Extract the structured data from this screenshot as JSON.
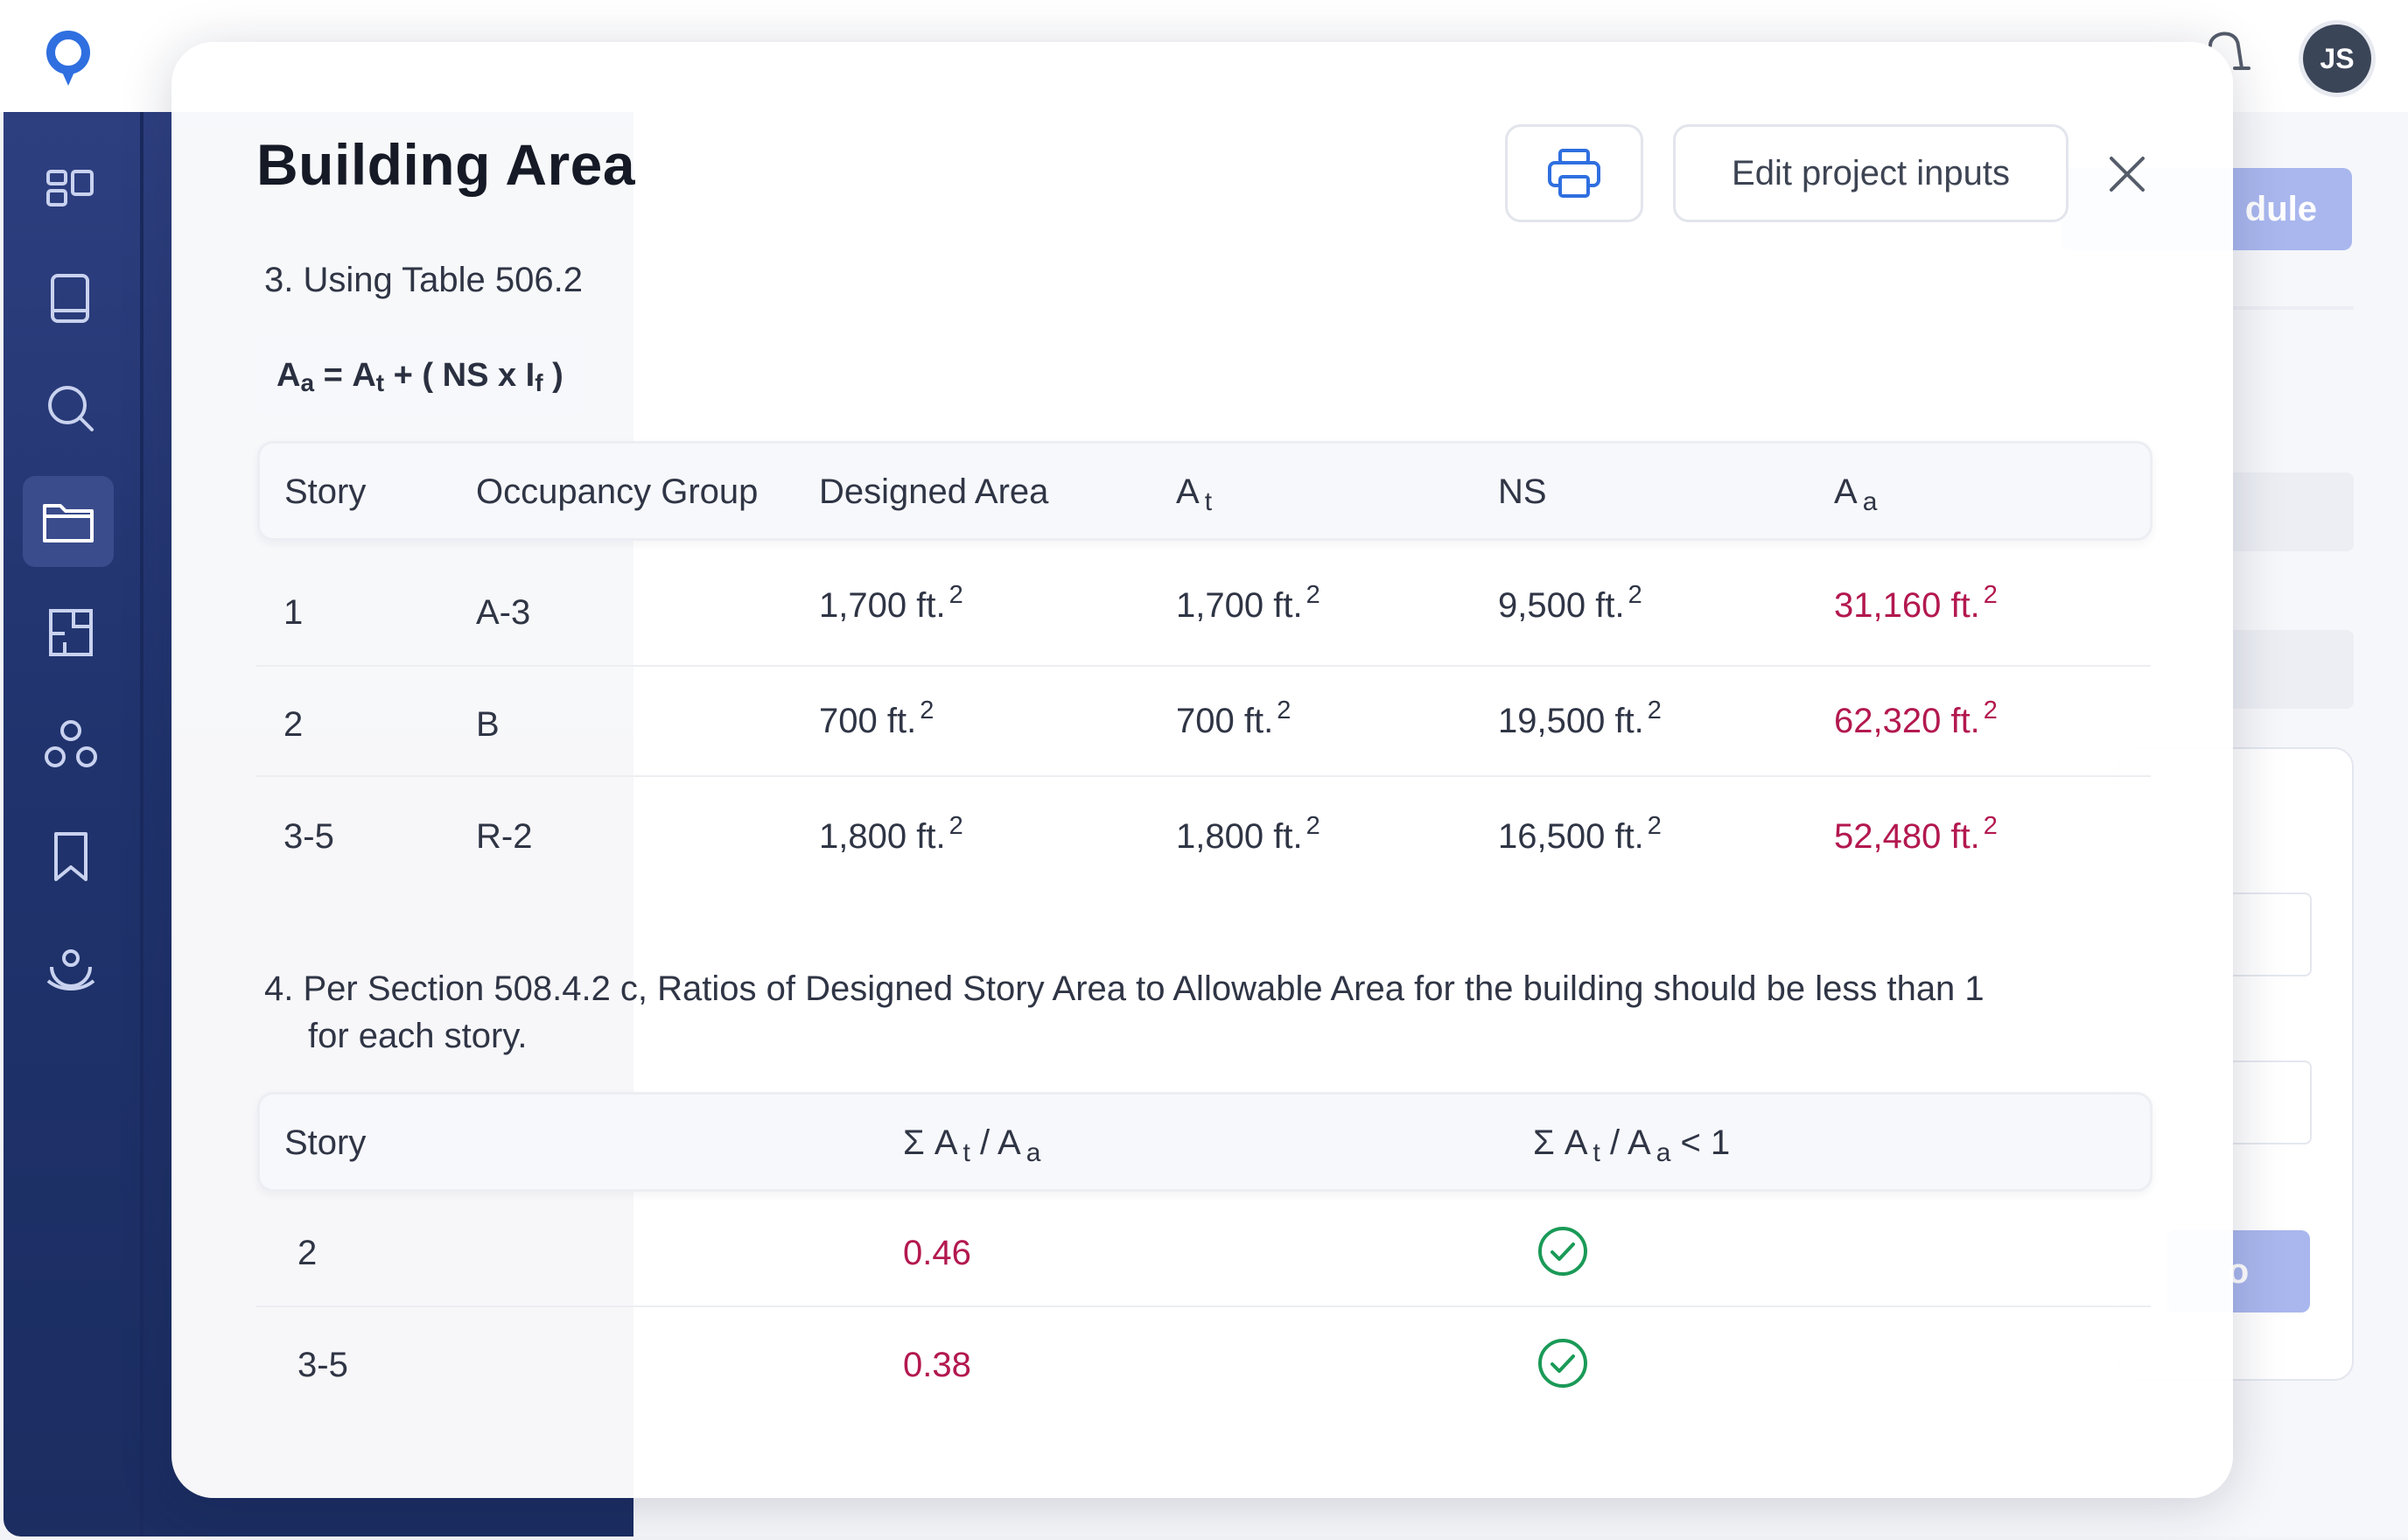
{
  "user": {
    "initials": "JS"
  },
  "background": {
    "primary_button_label": "dule",
    "secondary_button_label": "o"
  },
  "modal": {
    "title": "Building Area",
    "edit_button_label": "Edit project inputs",
    "step3_text": "3. Using Table 506.2",
    "formula": {
      "lhs": "A",
      "lhs_sub": "a",
      "eq": " = ",
      "term1": "A",
      "term1_sub": "t",
      "rest": " + ( NS x I",
      "rest_sub": "f",
      "close": " )"
    },
    "table1": {
      "headers": {
        "story": "Story",
        "occupancy": "Occupancy Group",
        "designed": "Designed Area",
        "at": "A",
        "at_sub": "t",
        "ns": "NS",
        "aa": "A",
        "aa_sub": "a"
      },
      "unit_exp": "2",
      "rows": [
        {
          "story": "1",
          "occupancy": "A-3",
          "designed": "1,700 ft.",
          "at": "1,700 ft.",
          "ns": "9,500 ft.",
          "aa": "31,160 ft."
        },
        {
          "story": "2",
          "occupancy": "B",
          "designed": "700 ft.",
          "at": "700 ft.",
          "ns": "19,500 ft.",
          "aa": "62,320 ft."
        },
        {
          "story": "3-5",
          "occupancy": "R-2",
          "designed": "1,800 ft.",
          "at": "1,800 ft.",
          "ns": "16,500 ft.",
          "aa": "52,480 ft."
        }
      ]
    },
    "step4_text": "4. Per Section 508.4.2 c, Ratios of Designed Story Area to Allowable Area for the building should be less than 1",
    "step4_text_cont": "for each story.",
    "table2": {
      "headers": {
        "story": "Story",
        "ratio_prefix": "Σ A",
        "ratio_sub1": "t",
        "ratio_mid": " / A",
        "ratio_sub2": "a",
        "check_suffix": " < 1"
      },
      "rows": [
        {
          "story": "2",
          "ratio": "0.46",
          "passes": true
        },
        {
          "story": "3-5",
          "ratio": "0.38",
          "passes": true
        }
      ]
    }
  },
  "colors": {
    "accent_red": "#b3184f",
    "check_green": "#1a9a57",
    "brand_blue": "#2f6fe0",
    "sidebar": "#24366f"
  }
}
